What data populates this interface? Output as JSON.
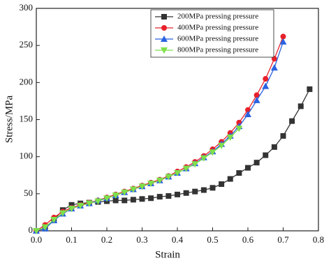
{
  "chart_data": {
    "type": "line",
    "x_label": "Strain",
    "y_label": "Stress/MPa",
    "x": [
      0,
      0.025,
      0.05,
      0.075,
      0.1,
      0.125,
      0.15,
      0.175,
      0.2,
      0.225,
      0.25,
      0.275,
      0.3,
      0.325,
      0.35,
      0.375,
      0.4,
      0.425,
      0.45,
      0.475,
      0.5,
      0.525,
      0.55,
      0.575,
      0.6,
      0.625,
      0.65,
      0.675,
      0.7,
      0.725,
      0.75,
      0.775
    ],
    "series": [
      {
        "name": "200MPa pressing pressure",
        "color": "#333333",
        "marker": "square",
        "values": [
          0,
          3,
          15,
          28,
          35,
          37,
          38,
          39,
          40,
          41,
          41,
          42,
          43,
          44,
          46,
          47,
          49,
          51,
          53,
          55,
          58,
          63,
          70,
          78,
          85,
          92,
          102,
          113,
          128,
          148,
          168,
          191
        ]
      },
      {
        "name": "400MPa pressing pressure",
        "color": "#e8202a",
        "marker": "circle",
        "values": [
          0,
          8,
          18,
          26,
          31,
          35,
          38,
          41,
          45,
          49,
          53,
          57,
          61,
          65,
          69,
          74,
          80,
          86,
          93,
          101,
          110,
          120,
          132,
          146,
          163,
          183,
          205,
          232,
          262,
          null,
          null,
          null
        ]
      },
      {
        "name": "600MPa pressing pressure",
        "color": "#2a62e0",
        "marker": "triangle-up",
        "values": [
          0,
          3,
          14,
          23,
          30,
          34,
          37,
          41,
          44,
          48,
          52,
          56,
          60,
          64,
          68,
          73,
          78,
          84,
          91,
          99,
          107,
          117,
          128,
          141,
          157,
          176,
          195,
          220,
          255,
          null,
          null,
          null
        ]
      },
      {
        "name": "800MPa pressing pressure",
        "color": "#7ee04a",
        "marker": "triangle-down",
        "values": [
          0,
          5,
          15,
          24,
          30,
          34,
          37,
          40,
          44,
          48,
          52,
          56,
          60,
          64,
          68,
          73,
          78,
          84,
          90,
          98,
          106,
          115,
          126,
          138,
          null,
          null,
          null,
          null,
          null,
          null,
          null,
          null
        ]
      }
    ],
    "xlim": [
      0,
      0.8
    ],
    "ylim": [
      0,
      300
    ],
    "xticks": [
      {
        "value": 0,
        "label": "0.0"
      },
      0.1,
      0.2,
      0.3,
      0.4,
      0.5,
      0.6,
      0.7,
      0.8
    ],
    "yticks": [
      0,
      50,
      100,
      150,
      200,
      250,
      300
    ],
    "legend": "top"
  }
}
